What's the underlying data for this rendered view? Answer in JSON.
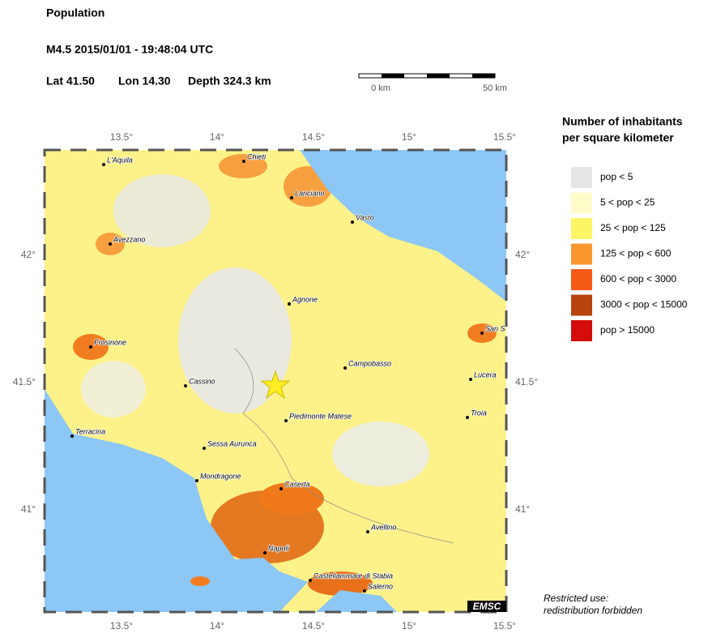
{
  "header": {
    "title": "Population",
    "event": "M4.5  2015/01/01 - 19:48:04 UTC",
    "lat": "Lat 41.50",
    "lon": "Lon  14.30",
    "depth": "Depth 324.3 km"
  },
  "scale": {
    "start": "0 km",
    "end": "50 km"
  },
  "legend": {
    "title": [
      "Number of inhabitants",
      "per square kilometer"
    ],
    "items": [
      {
        "label": "pop < 5",
        "color": "#e6e6e6"
      },
      {
        "label": "5 < pop < 25",
        "color": "#fdfbc8"
      },
      {
        "label": "25 < pop < 125",
        "color": "#fcf565"
      },
      {
        "label": "125 < pop < 600",
        "color": "#f9962e"
      },
      {
        "label": "600 < pop < 3000",
        "color": "#f65a16"
      },
      {
        "label": "3000 < pop < 15000",
        "color": "#b8440e"
      },
      {
        "label": "pop > 15000",
        "color": "#d40c0c"
      }
    ]
  },
  "axes": {
    "lon": [
      "13.5°",
      "14°",
      "14.5°",
      "15°",
      "15.5°"
    ],
    "lat": [
      "42°",
      "41.5°",
      "41°"
    ]
  },
  "cities": [
    "L'Aquila",
    "Chieti",
    "Lanciano",
    "Vasto",
    "Avezzano",
    "Agnone",
    "San S",
    "Frosinone",
    "Campobasso",
    "Lucera",
    "Cassino",
    "Piedimonte Matese",
    "Troia",
    "Terracina",
    "Sessa Aurunca",
    "Mondragone",
    "Caserta",
    "Avellino",
    "Napoli",
    "Castellammare di Stabia",
    "Salerno"
  ],
  "badge": "EMSC",
  "notice": [
    "Restricted use:",
    "redistribution forbidden"
  ]
}
